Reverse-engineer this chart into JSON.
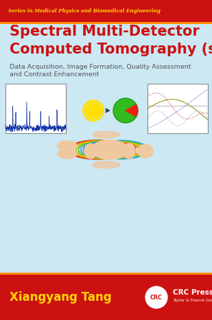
{
  "top_banner_color": "#CC1111",
  "top_banner_text": "Series in Medical Physics and Biomedical Engineering",
  "top_banner_text_color": "#FFD700",
  "main_bg_color": "#CBE8F3",
  "title_line1": "Spectral Multi-Detector",
  "title_line2": "Computed Tomography (sMDCT)",
  "title_color": "#CC1111",
  "subtitle_line1": "Data Acquisition, Image Formation, Quality Assessment",
  "subtitle_line2": "and Contrast Enhancement",
  "subtitle_color": "#555555",
  "bottom_banner_color": "#CC1111",
  "author_text": "Xiangyang Tang",
  "author_color": "#FFD700",
  "orange_stripe_color": "#FF8C00",
  "figsize": [
    3.09,
    4.66
  ],
  "dpi": 100
}
